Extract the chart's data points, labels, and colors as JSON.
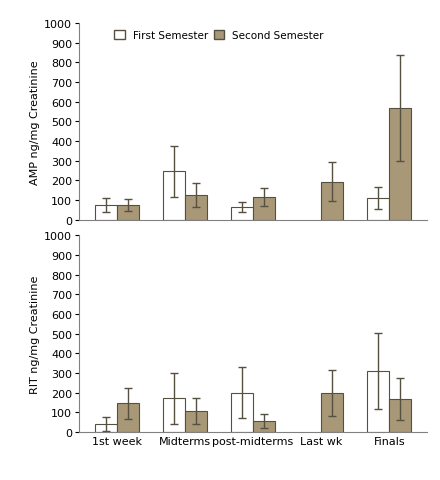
{
  "categories": [
    "1st week",
    "Midterms",
    "post-midterms",
    "Last wk",
    "Finals"
  ],
  "amp_first": [
    75,
    247,
    65,
    0,
    110
  ],
  "amp_second": [
    75,
    125,
    115,
    193,
    570
  ],
  "amp_first_err": [
    35,
    130,
    25,
    0,
    55
  ],
  "amp_second_err": [
    30,
    60,
    45,
    100,
    270
  ],
  "rit_first": [
    40,
    170,
    200,
    0,
    310
  ],
  "rit_second": [
    145,
    105,
    55,
    198,
    168
  ],
  "rit_first_err": [
    35,
    130,
    130,
    0,
    195
  ],
  "rit_second_err": [
    80,
    65,
    35,
    115,
    105
  ],
  "bar_width": 0.32,
  "color_first": "#FFFFFF",
  "color_second": "#A89878",
  "edge_color": "#555040",
  "ylabel_amp": "AMP ng/mg Creatinine",
  "ylabel_rit": "RIT ng/mg Creatinine",
  "legend_first": "First Semester",
  "legend_second": "Second Semester",
  "ylim": [
    0,
    1000
  ],
  "yticks": [
    0,
    100,
    200,
    300,
    400,
    500,
    600,
    700,
    800,
    900,
    1000
  ],
  "background_color": "#FFFFFF",
  "capsize": 3,
  "ecolor": "#555040",
  "elinewidth": 1.0
}
